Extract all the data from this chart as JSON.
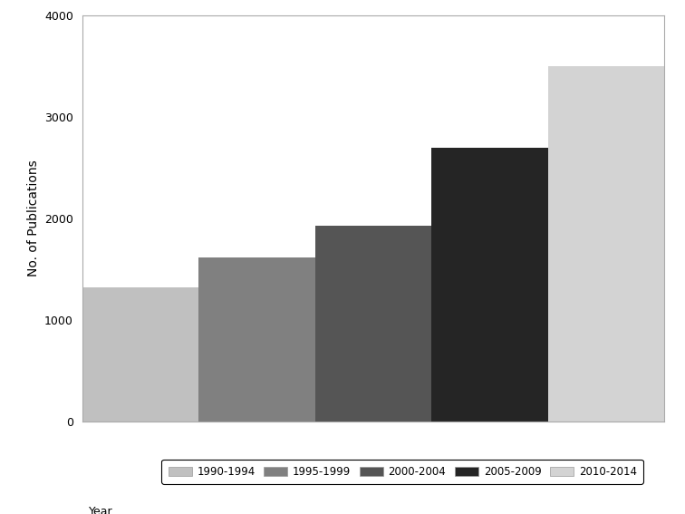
{
  "categories": [
    "1990-1994",
    "1995-1999",
    "2000-2004",
    "2005-2009",
    "2010-2014"
  ],
  "values": [
    1320,
    1620,
    1930,
    2700,
    3500
  ],
  "bar_colors": [
    "#c0c0c0",
    "#808080",
    "#555555",
    "#252525",
    "#d3d3d3"
  ],
  "ylabel": "No. of Publications",
  "ylim": [
    0,
    4000
  ],
  "yticks": [
    0,
    1000,
    2000,
    3000,
    4000
  ],
  "legend_label": "Year",
  "background_color": "#ffffff",
  "bar_width": 1.0,
  "edge_color": "#ffffff"
}
